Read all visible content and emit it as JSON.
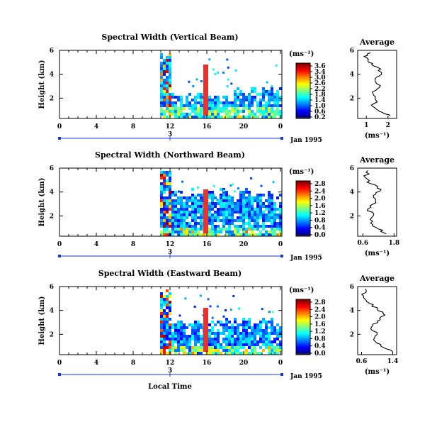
{
  "chart_data": {
    "type": "heatmap",
    "shared": {
      "xlabel": "Local Time",
      "ylabel": "Height (km)",
      "x_ticks": [
        "0",
        "4",
        "8",
        "12",
        "16",
        "20",
        "0"
      ],
      "day_marker": "3",
      "date_label": "Jan 1995",
      "colorbar_unit": "(ms⁻¹)",
      "avg_title": "Average",
      "avg_xlabel": "(ms⁻¹)",
      "colors": {
        "red": "#e8322d",
        "blue": "#1f3fe0",
        "marker": "#1a3ad6"
      }
    },
    "panels": [
      {
        "title": "Spectral Width (Vertical Beam)",
        "y_ticks": [
          "6",
          "4",
          "2"
        ],
        "y_range": [
          0.3,
          6
        ],
        "colorbar_ticks": [
          "3.6",
          "3.4",
          "3.0",
          "2.6",
          "2.2",
          "1.8",
          "1.4",
          "1.0",
          "0.6",
          "0.2"
        ],
        "colorbar_range": [
          0,
          3.6
        ],
        "avg_x_ticks": [
          "1",
          "2"
        ],
        "avg_x_range": [
          0.6,
          2.4
        ],
        "avg_y_ticks": [
          "6",
          "4",
          "2"
        ],
        "average_profile": [
          {
            "height": 0.5,
            "value": 2.1
          },
          {
            "height": 0.9,
            "value": 1.6
          },
          {
            "height": 1.3,
            "value": 1.3
          },
          {
            "height": 1.8,
            "value": 1.45
          },
          {
            "height": 2.4,
            "value": 1.3
          },
          {
            "height": 2.9,
            "value": 1.6
          },
          {
            "height": 3.5,
            "value": 1.4
          },
          {
            "height": 4.0,
            "value": 1.7
          },
          {
            "height": 4.6,
            "value": 1.5
          },
          {
            "height": 5.0,
            "value": 1.1
          },
          {
            "height": 5.5,
            "value": 0.9
          },
          {
            "height": 5.8,
            "value": 1.2
          }
        ]
      },
      {
        "title": "Spectral Width (Northward Beam)",
        "y_ticks": [
          "6",
          "4",
          "2"
        ],
        "y_range": [
          0.3,
          6
        ],
        "colorbar_ticks": [
          "2.8",
          "2.4",
          "2.0",
          "1.6",
          "1.2",
          "0.8",
          "0.4",
          "0.0"
        ],
        "colorbar_range": [
          0,
          2.8
        ],
        "avg_x_ticks": [
          "0.6",
          "1.8"
        ],
        "avg_x_range": [
          0.4,
          1.9
        ],
        "avg_y_ticks": [
          "6",
          "4",
          "2"
        ],
        "average_profile": [
          {
            "height": 0.5,
            "value": 1.5
          },
          {
            "height": 0.9,
            "value": 1.2
          },
          {
            "height": 1.4,
            "value": 0.9
          },
          {
            "height": 2.0,
            "value": 1.0
          },
          {
            "height": 2.6,
            "value": 0.8
          },
          {
            "height": 3.1,
            "value": 1.1
          },
          {
            "height": 3.7,
            "value": 1.0
          },
          {
            "height": 4.2,
            "value": 1.3
          },
          {
            "height": 4.7,
            "value": 0.9
          },
          {
            "height": 5.2,
            "value": 0.7
          },
          {
            "height": 5.8,
            "value": 0.8
          }
        ]
      },
      {
        "title": "Spectral Width (Eastward Beam)",
        "y_ticks": [
          "6",
          "4",
          "2"
        ],
        "y_range": [
          0.3,
          6
        ],
        "colorbar_ticks": [
          "2.8",
          "2.4",
          "2.0",
          "1.6",
          "1.2",
          "0.8",
          "0.4",
          "0.0"
        ],
        "colorbar_range": [
          0,
          2.8
        ],
        "avg_x_ticks": [
          "0.6",
          "1.4"
        ],
        "avg_x_range": [
          0.5,
          1.5
        ],
        "avg_y_ticks": [
          "6",
          "4",
          "2"
        ],
        "average_profile": [
          {
            "height": 0.5,
            "value": 1.4
          },
          {
            "height": 0.9,
            "value": 1.15
          },
          {
            "height": 1.4,
            "value": 0.95
          },
          {
            "height": 2.0,
            "value": 1.0
          },
          {
            "height": 2.6,
            "value": 0.85
          },
          {
            "height": 3.1,
            "value": 1.0
          },
          {
            "height": 3.6,
            "value": 1.2
          },
          {
            "height": 4.1,
            "value": 1.0
          },
          {
            "height": 4.6,
            "value": 0.8
          },
          {
            "height": 5.2,
            "value": 0.65
          },
          {
            "height": 5.8,
            "value": 0.7
          }
        ]
      }
    ]
  }
}
